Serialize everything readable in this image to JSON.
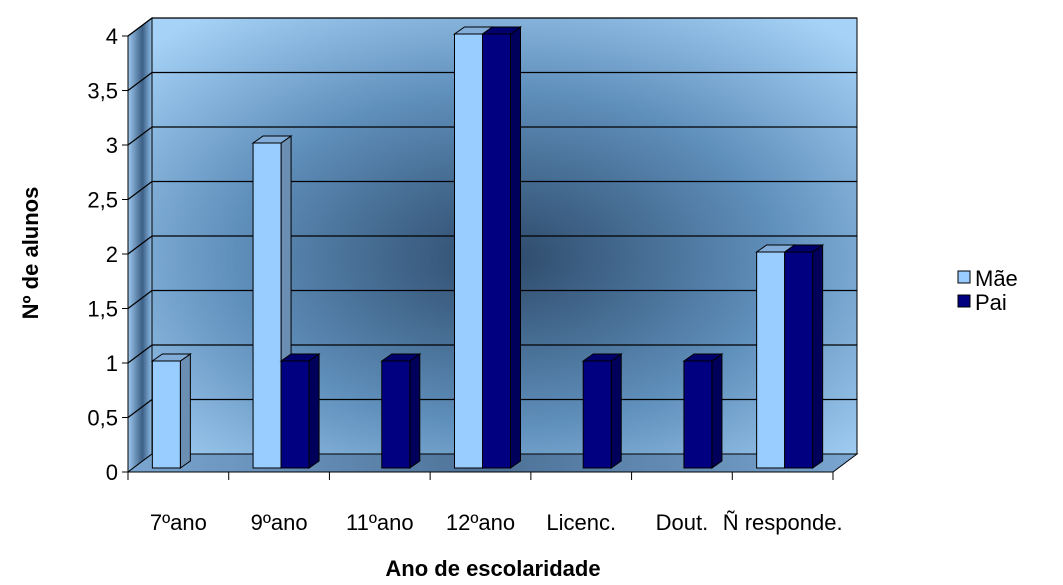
{
  "chart_data": {
    "type": "bar",
    "title": "",
    "xlabel": "Ano de escolaridade",
    "ylabel": "Nº de alunos",
    "categories": [
      "7ºano",
      "9ºano",
      "11ºano",
      "12ºano",
      "Licenc.",
      "Dout.",
      "Ñ responde."
    ],
    "series": [
      {
        "name": "Mãe",
        "values": [
          1,
          3,
          0,
          4,
          0,
          0,
          2
        ]
      },
      {
        "name": "Pai",
        "values": [
          0,
          1,
          1,
          4,
          1,
          1,
          2
        ]
      }
    ],
    "ylim": [
      0,
      4
    ],
    "yticks": [
      "0",
      "0,5",
      "1",
      "1,5",
      "2",
      "2,5",
      "3",
      "3,5",
      "4"
    ],
    "grid": true,
    "legend_position": "right",
    "colors": {
      "Mãe": "#99ccff",
      "Pai": "#000080"
    }
  }
}
